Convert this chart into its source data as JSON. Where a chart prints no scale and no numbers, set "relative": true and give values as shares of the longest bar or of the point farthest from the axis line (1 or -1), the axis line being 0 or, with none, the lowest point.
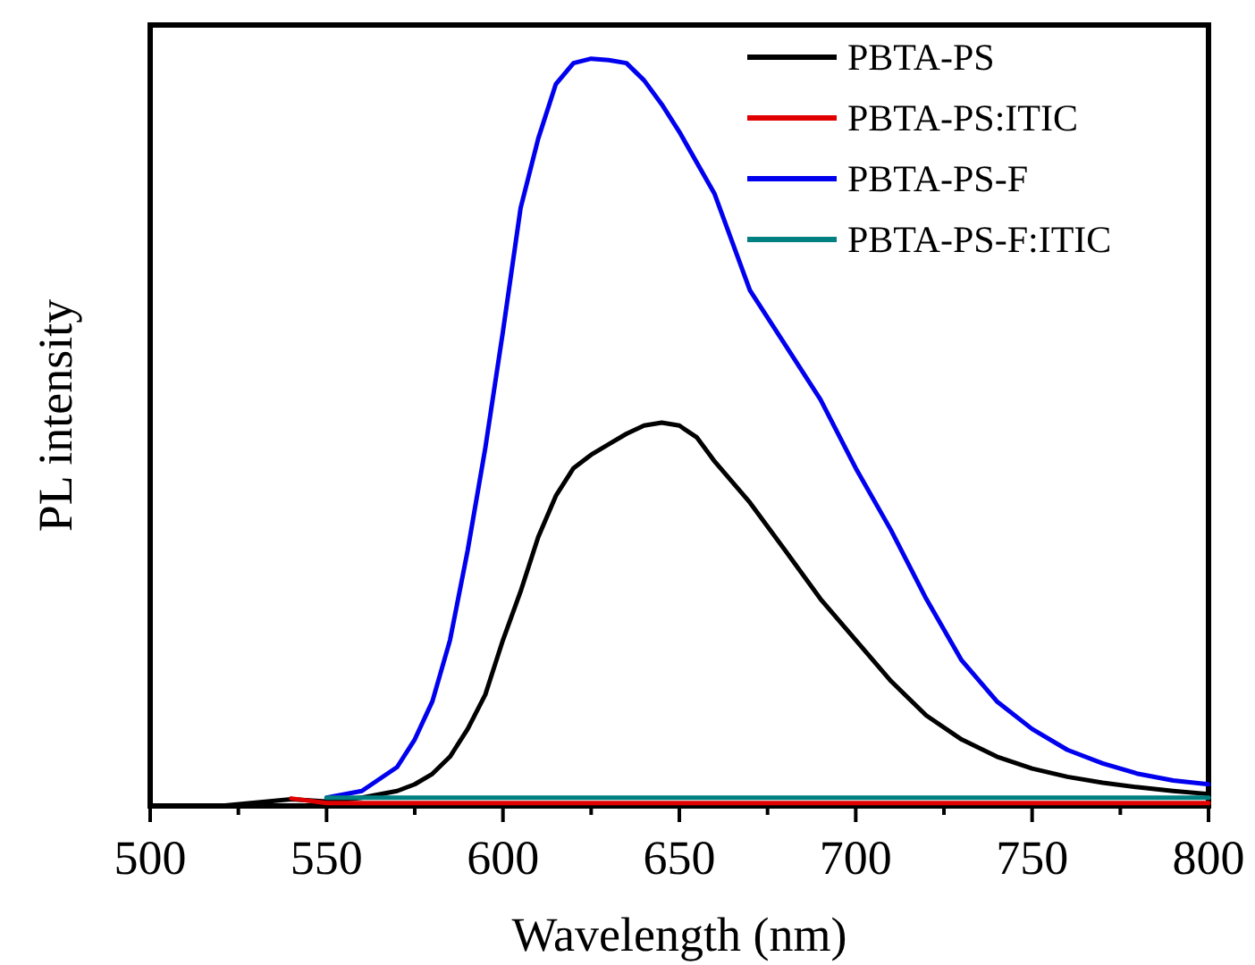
{
  "chart_data": {
    "type": "line",
    "relative": true,
    "xlabel": "Wavelength (nm)",
    "ylabel": "PL intensity",
    "xlim": [
      500,
      800
    ],
    "xticks": [
      500,
      {
        "value": 525,
        "label": null
      },
      550,
      {
        "value": 575,
        "label": null
      },
      600,
      {
        "value": 625,
        "label": null
      },
      650,
      {
        "value": 675,
        "label": null
      },
      700,
      {
        "value": 725,
        "label": null
      },
      750,
      {
        "value": 775,
        "label": null
      },
      800
    ],
    "legend": "top right",
    "grid": false,
    "marker": "none",
    "line_style": "solid",
    "series": [
      {
        "name": "PBTA-PS",
        "color": "#000000",
        "x": [
          500,
          520,
          540,
          550,
          560,
          570,
          575,
          580,
          585,
          590,
          595,
          600,
          605,
          610,
          615,
          620,
          625,
          630,
          635,
          640,
          645,
          650,
          655,
          660,
          670,
          680,
          690,
          700,
          710,
          720,
          730,
          740,
          750,
          760,
          770,
          780,
          790,
          800
        ],
        "values": [
          0,
          0,
          0.009,
          0.006,
          0.011,
          0.02,
          0.029,
          0.043,
          0.066,
          0.103,
          0.149,
          0.222,
          0.287,
          0.36,
          0.415,
          0.452,
          0.47,
          0.484,
          0.498,
          0.509,
          0.513,
          0.509,
          0.493,
          0.461,
          0.406,
          0.342,
          0.277,
          0.222,
          0.167,
          0.121,
          0.089,
          0.066,
          0.05,
          0.039,
          0.031,
          0.025,
          0.02,
          0.016
        ]
      },
      {
        "name": "PBTA-PS:ITIC",
        "color": "#e00000",
        "x": [
          540,
          550,
          600,
          650,
          700,
          750,
          800
        ],
        "values": [
          0.01,
          0.004,
          0.004,
          0.004,
          0.004,
          0.004,
          0.004
        ]
      },
      {
        "name": "PBTA-PS-F",
        "color": "#0000ee",
        "x": [
          550,
          560,
          570,
          575,
          580,
          585,
          590,
          595,
          600,
          605,
          610,
          615,
          620,
          625,
          630,
          635,
          640,
          645,
          650,
          660,
          670,
          680,
          690,
          700,
          710,
          720,
          730,
          740,
          750,
          760,
          770,
          780,
          790,
          800
        ],
        "values": [
          0.011,
          0.02,
          0.052,
          0.089,
          0.14,
          0.222,
          0.342,
          0.479,
          0.635,
          0.8,
          0.893,
          0.966,
          0.994,
          1,
          0.998,
          0.994,
          0.971,
          0.939,
          0.902,
          0.819,
          0.69,
          0.617,
          0.544,
          0.452,
          0.369,
          0.277,
          0.195,
          0.14,
          0.103,
          0.075,
          0.057,
          0.043,
          0.034,
          0.029
        ]
      },
      {
        "name": "PBTA-PS-F:ITIC",
        "color": "#008080",
        "x": [
          550,
          600,
          650,
          700,
          750,
          800
        ],
        "values": [
          0.011,
          0.011,
          0.011,
          0.011,
          0.011,
          0.011
        ]
      }
    ]
  }
}
